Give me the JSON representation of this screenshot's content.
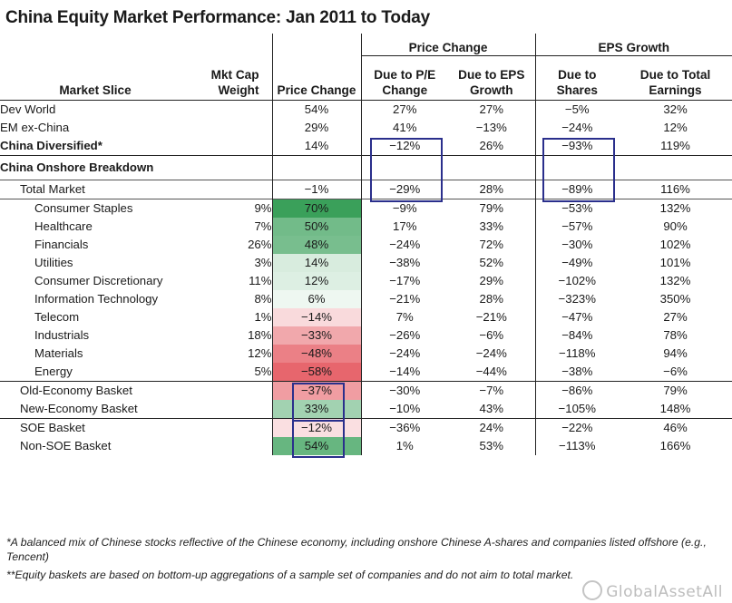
{
  "title": "China Equity Market Performance: Jan 2011 to Today",
  "headers": {
    "group_price": "Price Change",
    "group_eps": "EPS Growth",
    "market_slice": "Market Slice",
    "mkt_cap": [
      "Mkt Cap",
      "Weight"
    ],
    "price_change": "Price Change",
    "due_pe": [
      "Due to P/E",
      "Change"
    ],
    "due_eps": [
      "Due to EPS",
      "Growth"
    ],
    "due_shares": [
      "Due to",
      "Shares"
    ],
    "due_total": [
      "Due to Total",
      "Earnings"
    ]
  },
  "rows": [
    {
      "label": "Dev World",
      "indent": 0,
      "bold": false,
      "weight": "",
      "price": "54%",
      "pe": "27%",
      "eps": "27%",
      "shares": "−5%",
      "total": "32%",
      "heat": null,
      "sep": "top"
    },
    {
      "label": "EM ex-China",
      "indent": 0,
      "bold": false,
      "weight": "",
      "price": "29%",
      "pe": "41%",
      "eps": "−13%",
      "shares": "−24%",
      "total": "12%",
      "heat": null,
      "sep": ""
    },
    {
      "label": "China Diversified*",
      "indent": 0,
      "bold": true,
      "weight": "",
      "price": "14%",
      "pe": "−12%",
      "eps": "26%",
      "shares": "−93%",
      "total": "119%",
      "heat": null,
      "sep": ""
    },
    {
      "label": "China Onshore Breakdown",
      "indent": 0,
      "bold": true,
      "weight": "",
      "price": "",
      "pe": "",
      "eps": "",
      "shares": "",
      "total": "",
      "heat": null,
      "sep": "top",
      "section": true
    },
    {
      "label": "Total Market",
      "indent": 1,
      "bold": false,
      "weight": "",
      "price": "−1%",
      "pe": "−29%",
      "eps": "28%",
      "shares": "−89%",
      "total": "116%",
      "heat": null,
      "sep": "light"
    },
    {
      "label": "Consumer Staples",
      "indent": 2,
      "bold": false,
      "weight": "9%",
      "price": "70%",
      "pe": "−9%",
      "eps": "79%",
      "shares": "−53%",
      "total": "132%",
      "heat": 70,
      "sep": "light"
    },
    {
      "label": "Healthcare",
      "indent": 2,
      "bold": false,
      "weight": "7%",
      "price": "50%",
      "pe": "17%",
      "eps": "33%",
      "shares": "−57%",
      "total": "90%",
      "heat": 50,
      "sep": ""
    },
    {
      "label": "Financials",
      "indent": 2,
      "bold": false,
      "weight": "26%",
      "price": "48%",
      "pe": "−24%",
      "eps": "72%",
      "shares": "−30%",
      "total": "102%",
      "heat": 48,
      "sep": ""
    },
    {
      "label": "Utilities",
      "indent": 2,
      "bold": false,
      "weight": "3%",
      "price": "14%",
      "pe": "−38%",
      "eps": "52%",
      "shares": "−49%",
      "total": "101%",
      "heat": 14,
      "sep": ""
    },
    {
      "label": "Consumer Discretionary",
      "indent": 2,
      "bold": false,
      "weight": "11%",
      "price": "12%",
      "pe": "−17%",
      "eps": "29%",
      "shares": "−102%",
      "total": "132%",
      "heat": 12,
      "sep": ""
    },
    {
      "label": "Information Technology",
      "indent": 2,
      "bold": false,
      "weight": "8%",
      "price": "6%",
      "pe": "−21%",
      "eps": "28%",
      "shares": "−323%",
      "total": "350%",
      "heat": 6,
      "sep": ""
    },
    {
      "label": "Telecom",
      "indent": 2,
      "bold": false,
      "weight": "1%",
      "price": "−14%",
      "pe": "7%",
      "eps": "−21%",
      "shares": "−47%",
      "total": "27%",
      "heat": -14,
      "sep": ""
    },
    {
      "label": "Industrials",
      "indent": 2,
      "bold": false,
      "weight": "18%",
      "price": "−33%",
      "pe": "−26%",
      "eps": "−6%",
      "shares": "−84%",
      "total": "78%",
      "heat": -33,
      "sep": ""
    },
    {
      "label": "Materials",
      "indent": 2,
      "bold": false,
      "weight": "12%",
      "price": "−48%",
      "pe": "−24%",
      "eps": "−24%",
      "shares": "−118%",
      "total": "94%",
      "heat": -48,
      "sep": ""
    },
    {
      "label": "Energy",
      "indent": 2,
      "bold": false,
      "weight": "5%",
      "price": "−58%",
      "pe": "−14%",
      "eps": "−44%",
      "shares": "−38%",
      "total": "−6%",
      "heat": -58,
      "sep": ""
    },
    {
      "label": "Old-Economy Basket",
      "indent": 1,
      "bold": false,
      "weight": "",
      "price": "−37%",
      "pe": "−30%",
      "eps": "−7%",
      "shares": "−86%",
      "total": "79%",
      "heat": -37,
      "sep": "top"
    },
    {
      "label": "New-Economy Basket",
      "indent": 1,
      "bold": false,
      "weight": "",
      "price": "33%",
      "pe": "−10%",
      "eps": "43%",
      "shares": "−105%",
      "total": "148%",
      "heat": 33,
      "sep": ""
    },
    {
      "label": "SOE Basket",
      "indent": 1,
      "bold": false,
      "weight": "",
      "price": "−12%",
      "pe": "−36%",
      "eps": "24%",
      "shares": "−22%",
      "total": "46%",
      "heat": -12,
      "sep": "top"
    },
    {
      "label": "Non-SOE Basket",
      "indent": 1,
      "bold": false,
      "weight": "",
      "price": "54%",
      "pe": "1%",
      "eps": "53%",
      "shares": "−113%",
      "total": "166%",
      "heat": 54,
      "sep": ""
    }
  ],
  "footnotes": [
    "*A balanced mix of Chinese stocks reflective of the Chinese economy, including onshore Chinese A-shares and companies listed offshore (e.g., Tencent)",
    "**Equity baskets are based on bottom-up aggregations of a sample set of companies and do not aim to total market."
  ],
  "watermark": "GlobalAssetAll",
  "colors": {
    "positive": "#3aa05a",
    "negative": "#e2464f",
    "box": "#2a2f8c",
    "rule": "#222222"
  }
}
